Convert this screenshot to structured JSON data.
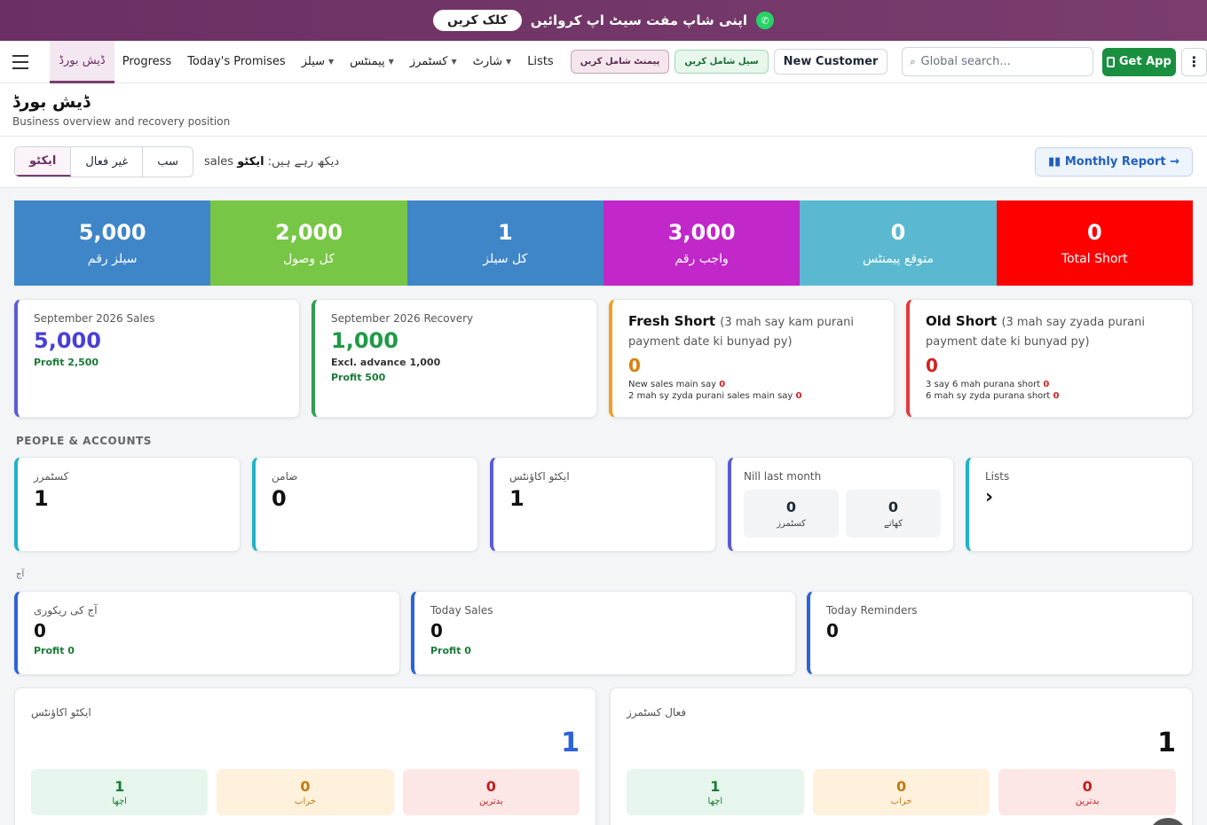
{
  "banner": {
    "button": "کلک کریں",
    "text": "اپنی شاپ مفت سیٹ اپ کروائیں"
  },
  "nav": {
    "items": [
      {
        "label": "ڈیش بورڈ",
        "caret": false,
        "active": true
      },
      {
        "label": "Progress",
        "caret": false
      },
      {
        "label": "Today's Promises",
        "caret": false
      },
      {
        "label": "سیلز",
        "caret": true
      },
      {
        "label": "پیمنٹس",
        "caret": true
      },
      {
        "label": "کسٹمرز",
        "caret": true
      },
      {
        "label": "شارٹ",
        "caret": true
      },
      {
        "label": "Lists",
        "caret": false
      }
    ],
    "add_payment": "پیمنٹ شامل کریں",
    "add_sale": "سیل شامل کریں",
    "new_customer": "New Customer",
    "search_placeholder": "Global search...",
    "get_app": "Get App"
  },
  "page": {
    "title": "ڈیش بورڈ",
    "subtitle": "Business overview and recovery position"
  },
  "filter": {
    "segments": [
      "ایکٹو",
      "غیر فعال",
      "سب"
    ],
    "viewing_prefix": "sales دیکھ رہے ہیں:",
    "viewing_value": "ایکٹو",
    "monthly_report": "Monthly Report →"
  },
  "tiles": [
    {
      "value": "5,000",
      "label": "سیلز رقم",
      "color": "#3f86c8"
    },
    {
      "value": "2,000",
      "label": "کل وصول",
      "color": "#78c646"
    },
    {
      "value": "1",
      "label": "کل سیلز",
      "color": "#3f86c8"
    },
    {
      "value": "3,000",
      "label": "واجب رقم",
      "color": "#c127c9"
    },
    {
      "value": "0",
      "label": "متوقع پیمنٹس",
      "color": "#5ab8d0"
    },
    {
      "value": "0",
      "label": "Total Short",
      "color": "#ff0000"
    }
  ],
  "month_sales": {
    "label": "September 2026 Sales",
    "value": "5,000",
    "profit": "Profit 2,500"
  },
  "month_recovery": {
    "label": "September 2026 Recovery",
    "value": "1,000",
    "advance": "Excl. advance 1,000",
    "profit": "Profit 500"
  },
  "fresh_short": {
    "title": "Fresh Short",
    "desc": "(3 mah say kam purani payment date ki bunyad py)",
    "value": "0",
    "line1": "New sales main say",
    "line1_val": "0",
    "line2": "2 mah sy zyda purani sales main say",
    "line2_val": "0"
  },
  "old_short": {
    "title": "Old Short",
    "desc": "(3 mah say zyada purani payment date ki bunyad py)",
    "value": "0",
    "line1": "3 say 6 mah purana short",
    "line1_val": "0",
    "line2": "6 mah sy zyda purana short",
    "line2_val": "0"
  },
  "people_section": "PEOPLE & ACCOUNTS",
  "people": {
    "customers": {
      "label": "کسٹمرز",
      "value": "1"
    },
    "guarantor": {
      "label": "ضامن",
      "value": "0"
    },
    "active_accounts": {
      "label": "ایکٹو اکاؤنٹس",
      "value": "1"
    },
    "nill": {
      "label": "Nill last month",
      "customers_val": "0",
      "customers_lbl": "کسٹمرز",
      "accounts_val": "0",
      "accounts_lbl": "کھاتے"
    },
    "lists": {
      "label": "Lists",
      "value": "›"
    }
  },
  "today_section": "آج",
  "today": {
    "recovery": {
      "label": "آج کی ریکوری",
      "value": "0",
      "profit": "Profit 0"
    },
    "sales": {
      "label": "Today Sales",
      "value": "0",
      "profit": "Profit 0"
    },
    "reminders": {
      "label": "Today Reminders",
      "value": "0"
    }
  },
  "accounts_panel": {
    "title": "ایکٹو اکاؤنٹس",
    "total": "1",
    "good": {
      "value": "1",
      "label": "اچھا"
    },
    "bad": {
      "value": "0",
      "label": "خراب"
    },
    "worst": {
      "value": "0",
      "label": "بدترین"
    }
  },
  "customers_panel": {
    "title": "فعال کسٹمرز",
    "total": "1",
    "good": {
      "value": "1",
      "label": "اچھا"
    },
    "bad": {
      "value": "0",
      "label": "خراب"
    },
    "worst": {
      "value": "0",
      "label": "بدترین"
    }
  }
}
